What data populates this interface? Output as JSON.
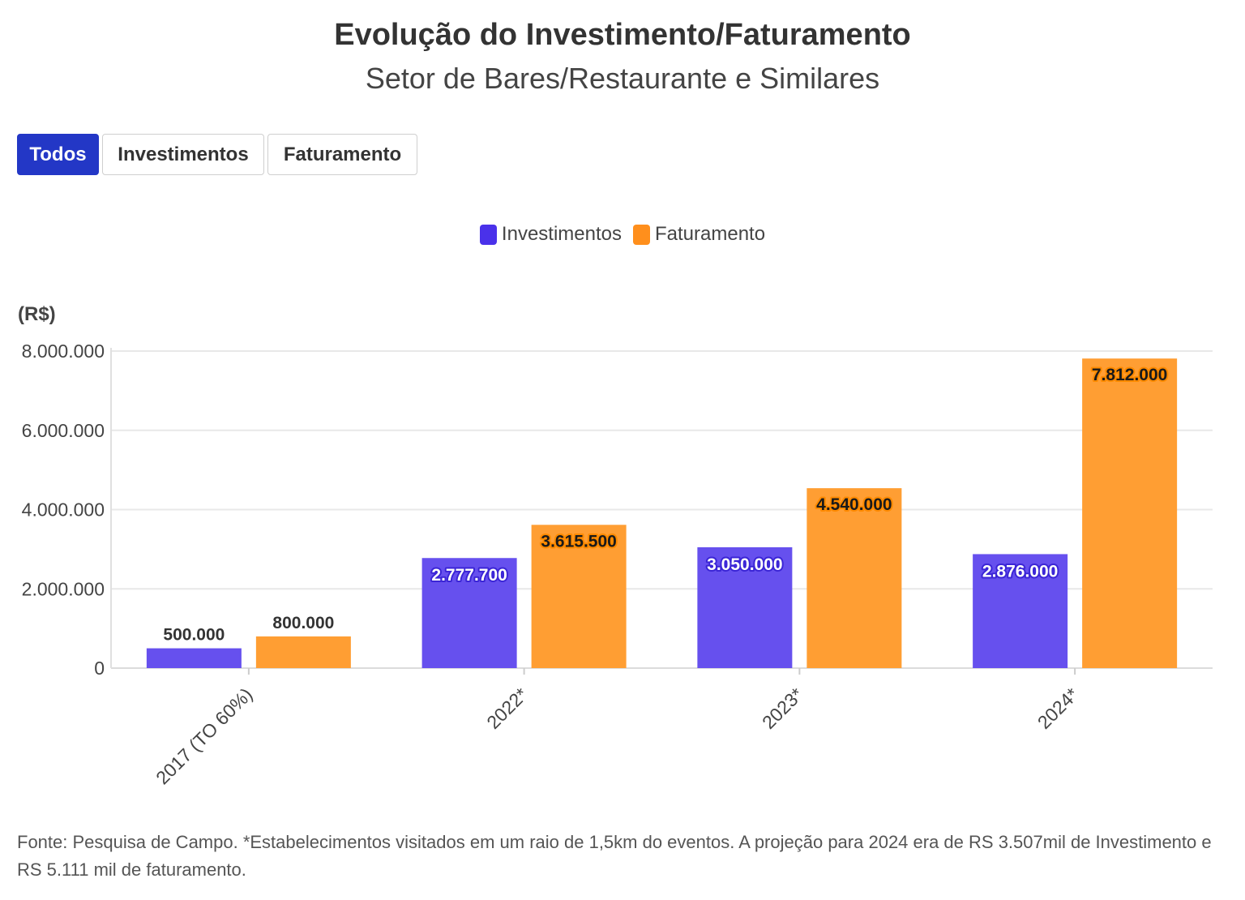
{
  "header": {
    "title": "Evolução do Investimento/Faturamento",
    "subtitle": "Setor de Bares/Restaurante e Similares"
  },
  "filters": [
    {
      "label": "Todos",
      "active": true
    },
    {
      "label": "Investimentos",
      "active": false
    },
    {
      "label": "Faturamento",
      "active": false
    }
  ],
  "footnote": "Fonte: Pesquisa de Campo. *Estabelecimentos visitados em um raio de 1,5km do eventos. A projeção para 2024 era de RS 3.507mil de Investimento e RS 5.111 mil de faturamento.",
  "chart_data": {
    "type": "bar",
    "ylabel": "(R$)",
    "categories": [
      "2017 (TO 60%)",
      "2022*",
      "2023*",
      "2024*"
    ],
    "series": [
      {
        "name": "Investimentos",
        "color": "#6650ee",
        "swatch": "#4a31ea",
        "values": [
          500000,
          2777700,
          3050000,
          2876000
        ]
      },
      {
        "name": "Faturamento",
        "color": "#ff9e33",
        "swatch": "#ff8f1c",
        "values": [
          800000,
          3615500,
          4540000,
          7812000
        ]
      }
    ],
    "data_labels": [
      [
        "500.000",
        "2.777.700",
        "3.050.000",
        "2.876.000"
      ],
      [
        "800.000",
        "3.615.500",
        "4.540.000",
        "7.812.000"
      ]
    ],
    "yticks": [
      0,
      2000000,
      4000000,
      6000000,
      8000000
    ],
    "ytick_labels": [
      "0",
      "2.000.000",
      "4.000.000",
      "6.000.000",
      "8.000.000"
    ],
    "ylim": [
      0,
      8000000
    ],
    "grid": true,
    "legend_position": "top-center"
  }
}
